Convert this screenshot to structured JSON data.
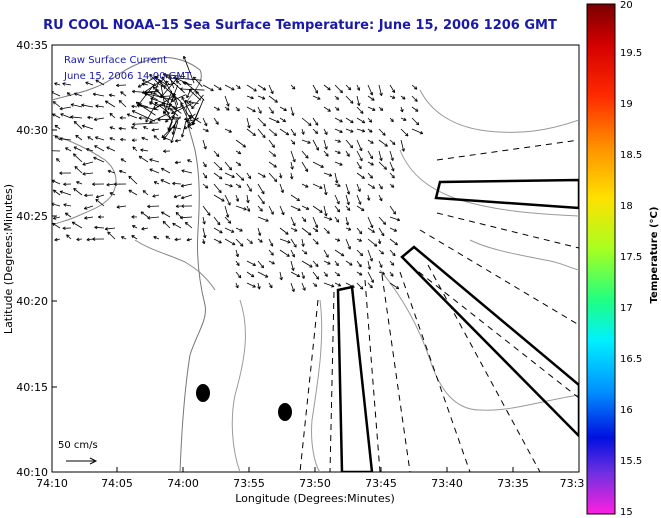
{
  "title": "RU COOL  NOAA–15  Sea Surface Temperature:  June 15, 2006 1206 GMT",
  "inset": {
    "line1": "Raw Surface Current",
    "line2": "June 15, 2006 14:00 GMT"
  },
  "axes": {
    "xlabel": "Longitude (Degrees:Minutes)",
    "ylabel": "Latitude (Degrees:Minutes)",
    "x_ticks": [
      "74:10",
      "74:05",
      "74:00",
      "73:55",
      "73:50",
      "73:45",
      "73:40",
      "73:35",
      "73:3"
    ],
    "y_ticks": [
      "40:35",
      "40:30",
      "40:25",
      "40:20",
      "40:15",
      "40:10"
    ]
  },
  "scale": {
    "label": "50 cm/s"
  },
  "colorbar": {
    "label": "Temperature (°C)",
    "ticks": [
      "20",
      "19.5",
      "19",
      "18.5",
      "18",
      "17.5",
      "17",
      "16.5",
      "16",
      "15.5",
      "15"
    ]
  },
  "colors": {
    "title": "#1a1aa8",
    "inset_text": "#1a1aa8",
    "coast": "#777777",
    "arrows": "#000000"
  }
}
